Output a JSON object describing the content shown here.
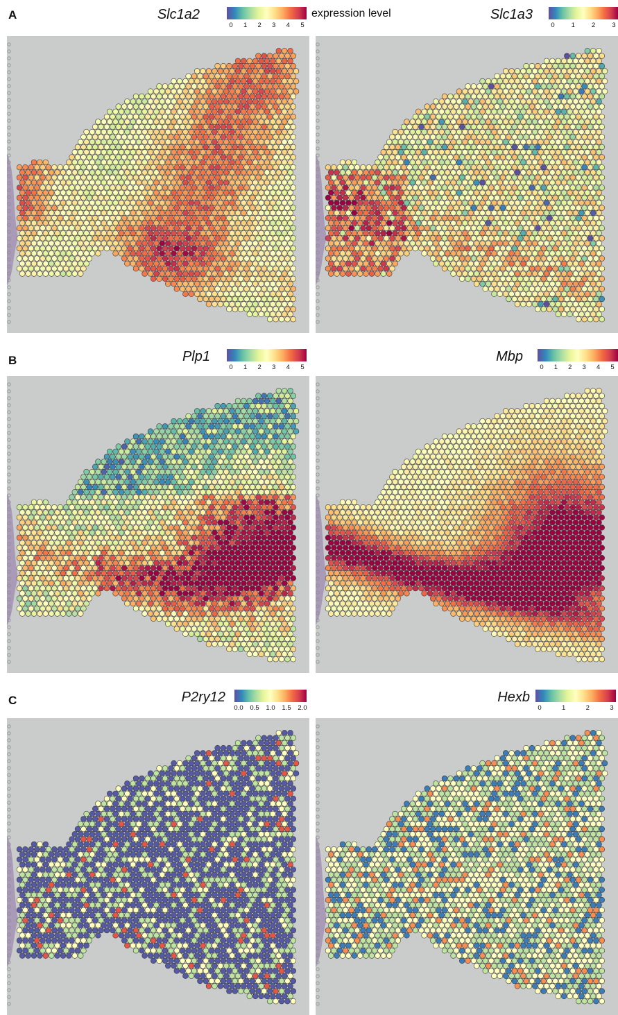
{
  "figure": {
    "rows": [
      {
        "letter": "A",
        "panels": [
          {
            "gene": "Slc1a2",
            "ticks": [
              "0",
              "1",
              "2",
              "3",
              "4",
              "5"
            ],
            "pattern": "slc1a2"
          },
          {
            "gene": "Slc1a3",
            "ticks": [
              "0",
              "1",
              "2",
              "3"
            ],
            "pattern": "slc1a3"
          }
        ],
        "legend_caption": "expression level"
      },
      {
        "letter": "B",
        "panels": [
          {
            "gene": "Plp1",
            "ticks": [
              "0",
              "1",
              "2",
              "3",
              "4",
              "5"
            ],
            "pattern": "plp1"
          },
          {
            "gene": "Mbp",
            "ticks": [
              "0",
              "1",
              "2",
              "3",
              "4",
              "5"
            ],
            "pattern": "mbp"
          }
        ]
      },
      {
        "letter": "C",
        "panels": [
          {
            "gene": "P2ry12",
            "ticks": [
              "0.0",
              "0.5",
              "1.0",
              "1.5",
              "2.0"
            ],
            "pattern": "p2ry12"
          },
          {
            "gene": "Hexb",
            "ticks": [
              "0",
              "1",
              "2",
              "3"
            ],
            "pattern": "hexb"
          }
        ]
      }
    ],
    "colormap": [
      "#5e4fa2",
      "#3288bd",
      "#66c2a5",
      "#abdda4",
      "#e6f598",
      "#ffffbf",
      "#fee08b",
      "#fdae61",
      "#f46d43",
      "#d53e4f",
      "#9e0142"
    ]
  }
}
